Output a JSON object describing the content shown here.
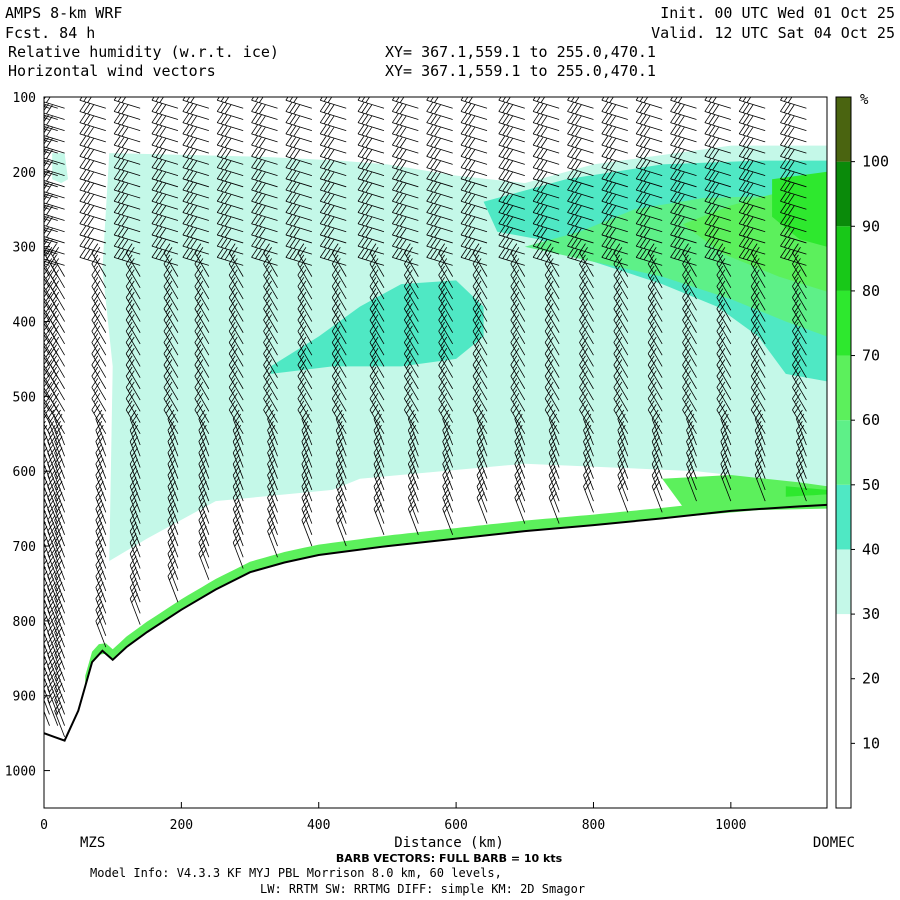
{
  "header": {
    "model": "AMPS 8-km WRF",
    "fcst": "Fcst.   84 h",
    "init": "Init. 00 UTC Wed 01 Oct 25",
    "valid": "Valid. 12 UTC Sat 04 Oct 25",
    "field1": "Relative humidity (w.r.t. ice)",
    "field2": "Horizontal wind vectors",
    "xy1": "XY= 367.1,559.1 to 255.0,470.1",
    "xy2": "XY= 367.1,559.1 to 255.0,470.1"
  },
  "footer": {
    "barb": "BARB VECTORS:  FULL BARB = 10 kts",
    "model_info": "Model Info: V4.3.3   KF      MYJ PBL  Morrison          8.0 km,  60 levels,",
    "phys": "LW: RRTM SW: RRTMG   DIFF: simple KM: 2D Smagor"
  },
  "chart_data": {
    "type": "heatmap",
    "title": "Relative humidity (w.r.t. ice)",
    "xlabel": "Distance (km)",
    "ylabel": "",
    "x_ticks": [
      0,
      200,
      400,
      600,
      800,
      1000
    ],
    "y_ticks": [
      100,
      200,
      300,
      400,
      500,
      600,
      700,
      800,
      900,
      1000
    ],
    "xlim": [
      0,
      1140
    ],
    "ylim": [
      1050,
      100
    ],
    "endpoints": {
      "left": "MZS",
      "right": "DOMEC"
    },
    "colorbar": {
      "unit": "%",
      "ticks": [
        10,
        20,
        30,
        40,
        50,
        60,
        70,
        80,
        90,
        100
      ],
      "levels": [
        {
          "from": 0,
          "to": 30,
          "color": "#ffffff"
        },
        {
          "from": 30,
          "to": 40,
          "color": "#c4f8e8"
        },
        {
          "from": 40,
          "to": 50,
          "color": "#4fe8c4"
        },
        {
          "from": 50,
          "to": 60,
          "color": "#5ef088"
        },
        {
          "from": 60,
          "to": 70,
          "color": "#5cf05c"
        },
        {
          "from": 70,
          "to": 80,
          "color": "#2ee82e"
        },
        {
          "from": 80,
          "to": 90,
          "color": "#18c818"
        },
        {
          "from": 90,
          "to": 100,
          "color": "#0a8a0a"
        },
        {
          "from": 100,
          "to": 110,
          "color": "#4a6410"
        }
      ]
    },
    "terrain_surface": [
      {
        "x": 0,
        "p": 950
      },
      {
        "x": 15,
        "p": 955
      },
      {
        "x": 30,
        "p": 960
      },
      {
        "x": 50,
        "p": 920
      },
      {
        "x": 70,
        "p": 855
      },
      {
        "x": 85,
        "p": 840
      },
      {
        "x": 100,
        "p": 852
      },
      {
        "x": 120,
        "p": 835
      },
      {
        "x": 150,
        "p": 815
      },
      {
        "x": 200,
        "p": 785
      },
      {
        "x": 250,
        "p": 758
      },
      {
        "x": 300,
        "p": 735
      },
      {
        "x": 350,
        "p": 722
      },
      {
        "x": 400,
        "p": 712
      },
      {
        "x": 500,
        "p": 700
      },
      {
        "x": 600,
        "p": 690
      },
      {
        "x": 700,
        "p": 680
      },
      {
        "x": 800,
        "p": 672
      },
      {
        "x": 900,
        "p": 663
      },
      {
        "x": 1000,
        "p": 653
      },
      {
        "x": 1100,
        "p": 647
      },
      {
        "x": 1140,
        "p": 645
      }
    ],
    "rh_regions": [
      {
        "level": "30-40",
        "color": "#c4f8e8",
        "poly": [
          [
            95,
            175
          ],
          [
            320,
            180
          ],
          [
            430,
            185
          ],
          [
            500,
            190
          ],
          [
            600,
            205
          ],
          [
            700,
            215
          ],
          [
            800,
            190
          ],
          [
            1000,
            165
          ],
          [
            1140,
            165
          ],
          [
            1140,
            650
          ],
          [
            1090,
            640
          ],
          [
            1000,
            605
          ],
          [
            950,
            600
          ],
          [
            700,
            590
          ],
          [
            460,
            610
          ],
          [
            420,
            625
          ],
          [
            250,
            640
          ],
          [
            150,
            690
          ],
          [
            95,
            720
          ],
          [
            100,
            460
          ],
          [
            85,
            330
          ],
          [
            95,
            175
          ]
        ]
      },
      {
        "level": "30-40",
        "color": "#c4f8e8",
        "poly": [
          [
            12,
            175
          ],
          [
            30,
            175
          ],
          [
            35,
            210
          ],
          [
            25,
            215
          ],
          [
            12,
            210
          ]
        ]
      },
      {
        "level": "40-50",
        "color": "#4fe8c4",
        "poly": [
          [
            330,
            460
          ],
          [
            400,
            420
          ],
          [
            460,
            380
          ],
          [
            520,
            350
          ],
          [
            600,
            345
          ],
          [
            640,
            380
          ],
          [
            640,
            420
          ],
          [
            600,
            450
          ],
          [
            520,
            460
          ],
          [
            420,
            460
          ],
          [
            330,
            470
          ]
        ]
      },
      {
        "level": "40-50",
        "color": "#4fe8c4",
        "poly": [
          [
            640,
            240
          ],
          [
            760,
            210
          ],
          [
            900,
            190
          ],
          [
            1040,
            185
          ],
          [
            1140,
            185
          ],
          [
            1140,
            480
          ],
          [
            1080,
            470
          ],
          [
            1040,
            420
          ],
          [
            980,
            380
          ],
          [
            900,
            350
          ],
          [
            800,
            320
          ],
          [
            720,
            290
          ],
          [
            660,
            280
          ]
        ]
      },
      {
        "level": "50-60",
        "color": "#5ef088",
        "poly": [
          [
            700,
            300
          ],
          [
            780,
            280
          ],
          [
            860,
            250
          ],
          [
            960,
            235
          ],
          [
            1140,
            230
          ],
          [
            1140,
            420
          ],
          [
            1080,
            400
          ],
          [
            1000,
            370
          ],
          [
            900,
            340
          ],
          [
            800,
            320
          ]
        ]
      },
      {
        "level": "60-70",
        "color": "#5cf05c",
        "poly": [
          [
            930,
            270
          ],
          [
            1000,
            245
          ],
          [
            1080,
            225
          ],
          [
            1140,
            220
          ],
          [
            1140,
            360
          ],
          [
            1070,
            340
          ],
          [
            990,
            310
          ]
        ]
      },
      {
        "level": "60-70",
        "color": "#5cf05c",
        "poly": [
          [
            900,
            610
          ],
          [
            1000,
            605
          ],
          [
            1100,
            615
          ],
          [
            1140,
            620
          ],
          [
            1140,
            650
          ],
          [
            1040,
            652
          ],
          [
            940,
            660
          ]
        ]
      },
      {
        "level": "70-80",
        "color": "#2ee82e",
        "poly": [
          [
            1060,
            210
          ],
          [
            1140,
            200
          ],
          [
            1140,
            300
          ],
          [
            1100,
            290
          ],
          [
            1060,
            260
          ]
        ]
      },
      {
        "level": "70-80",
        "color": "#2ee82e",
        "poly": [
          [
            1080,
            620
          ],
          [
            1140,
            625
          ],
          [
            1140,
            645
          ],
          [
            1080,
            648
          ]
        ]
      }
    ],
    "surface_layer_rh": {
      "level": "60-70",
      "color": "#5cf05c",
      "depth_hpa": 14
    },
    "wind_columns_x": [
      8,
      20,
      30,
      90,
      140,
      195,
      240,
      290,
      340,
      390,
      440,
      495,
      545,
      595,
      645,
      700,
      750,
      800,
      850,
      900,
      950,
      1000,
      1050,
      1110
    ],
    "wind_barbs": "10 kt barbs"
  }
}
